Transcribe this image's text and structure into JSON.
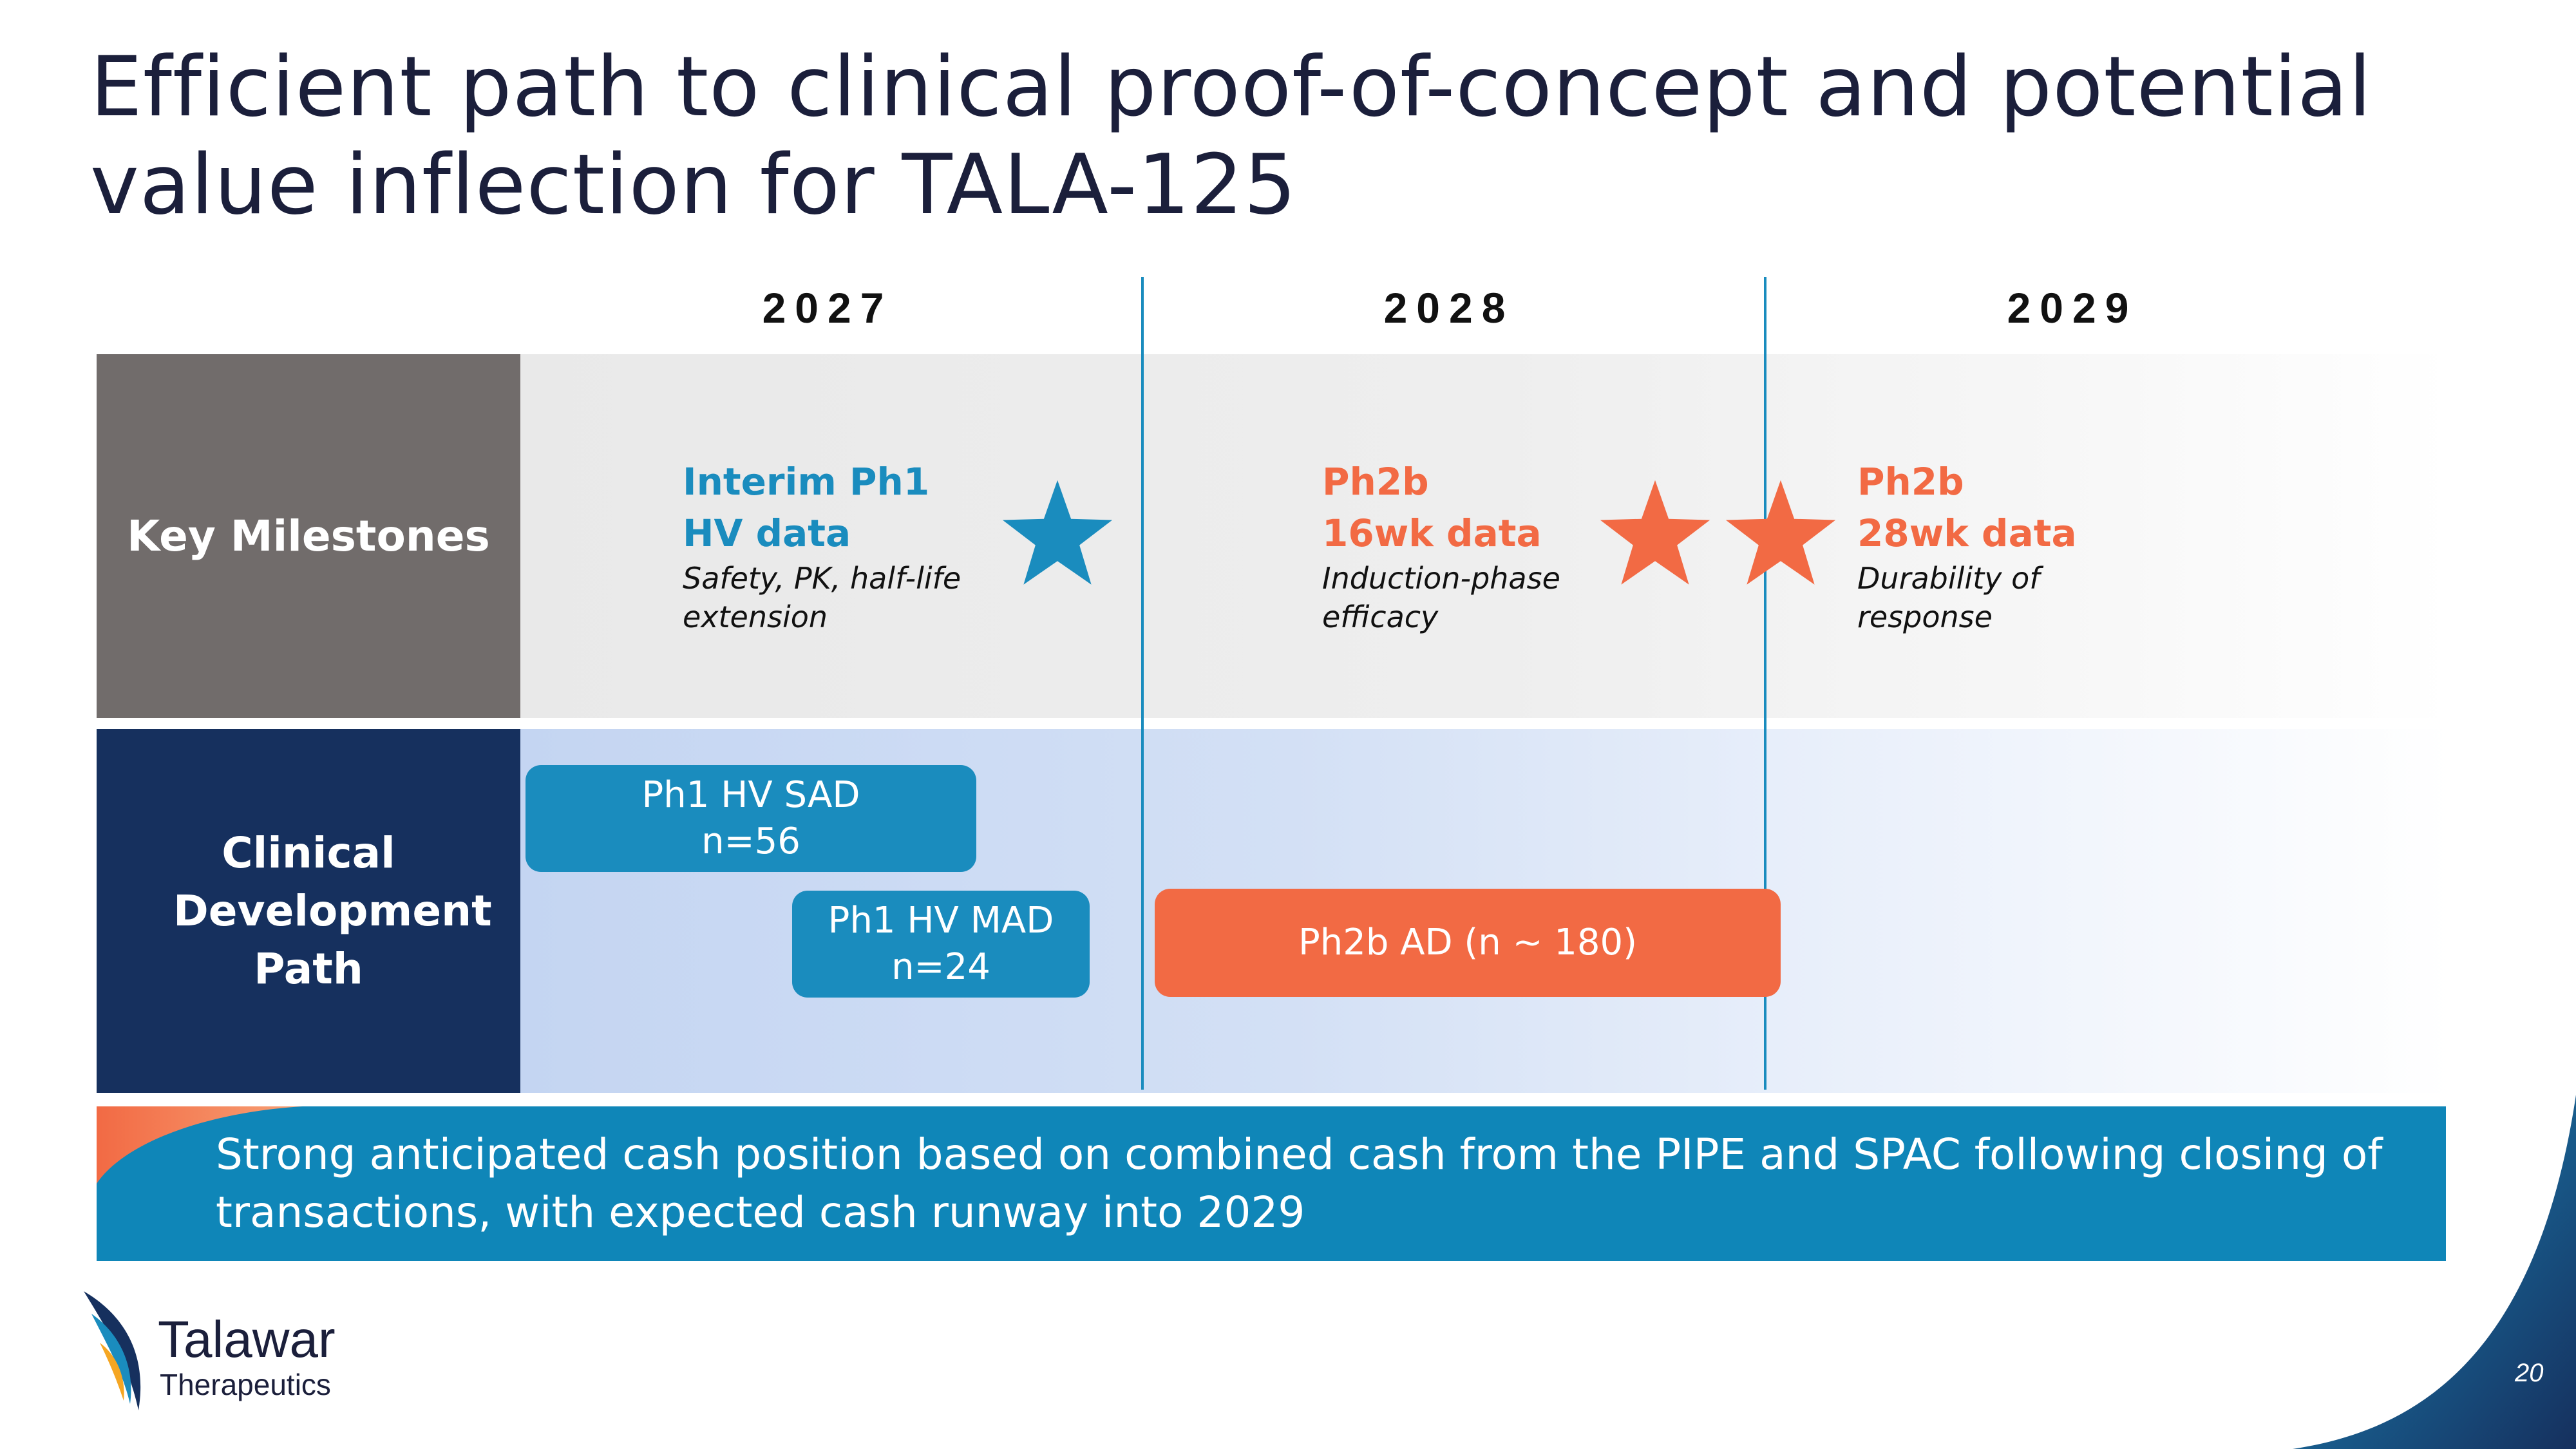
{
  "title": "Efficient path to clinical proof-of-concept and potential value inflection for TALA-125",
  "years": [
    "2027",
    "2028",
    "2029"
  ],
  "rows": {
    "milestones_label": "Key Milestones",
    "clinical_label": "Clinical Development Path"
  },
  "milestones": [
    {
      "title_line1": "Interim Ph1",
      "title_line2": "HV data",
      "desc_line1": "Safety, PK, half-life",
      "desc_line2": "extension",
      "color": "#1a8cbe"
    },
    {
      "title_line1": "Ph2b",
      "title_line2": "16wk data",
      "desc_line1": "Induction-phase",
      "desc_line2": "efficacy",
      "color": "#f26a44"
    },
    {
      "title_line1": "Ph2b",
      "title_line2": "28wk data",
      "desc_line1": "Durability of",
      "desc_line2": "response",
      "color": "#f26a44"
    }
  ],
  "bars": [
    {
      "line1": "Ph1 HV SAD",
      "line2": "n=56",
      "color": "#1a8cbe"
    },
    {
      "line1": "Ph1 HV MAD",
      "line2": "n=24",
      "color": "#1a8cbe"
    },
    {
      "line1": "Ph2b AD (n ~ 180)",
      "color": "#f26a44"
    }
  ],
  "cash_banner": {
    "line1": "Strong anticipated cash position based on combined cash from the PIPE and SPAC following closing of",
    "line2": "transactions, with expected cash runway into 2029"
  },
  "logo": {
    "name": "Talawar",
    "sub": "Therapeutics"
  },
  "page_number": "20",
  "colors": {
    "navy": "#16305e",
    "gray": "#716c6b",
    "blue": "#1a8cbe",
    "orange": "#f26a44"
  }
}
